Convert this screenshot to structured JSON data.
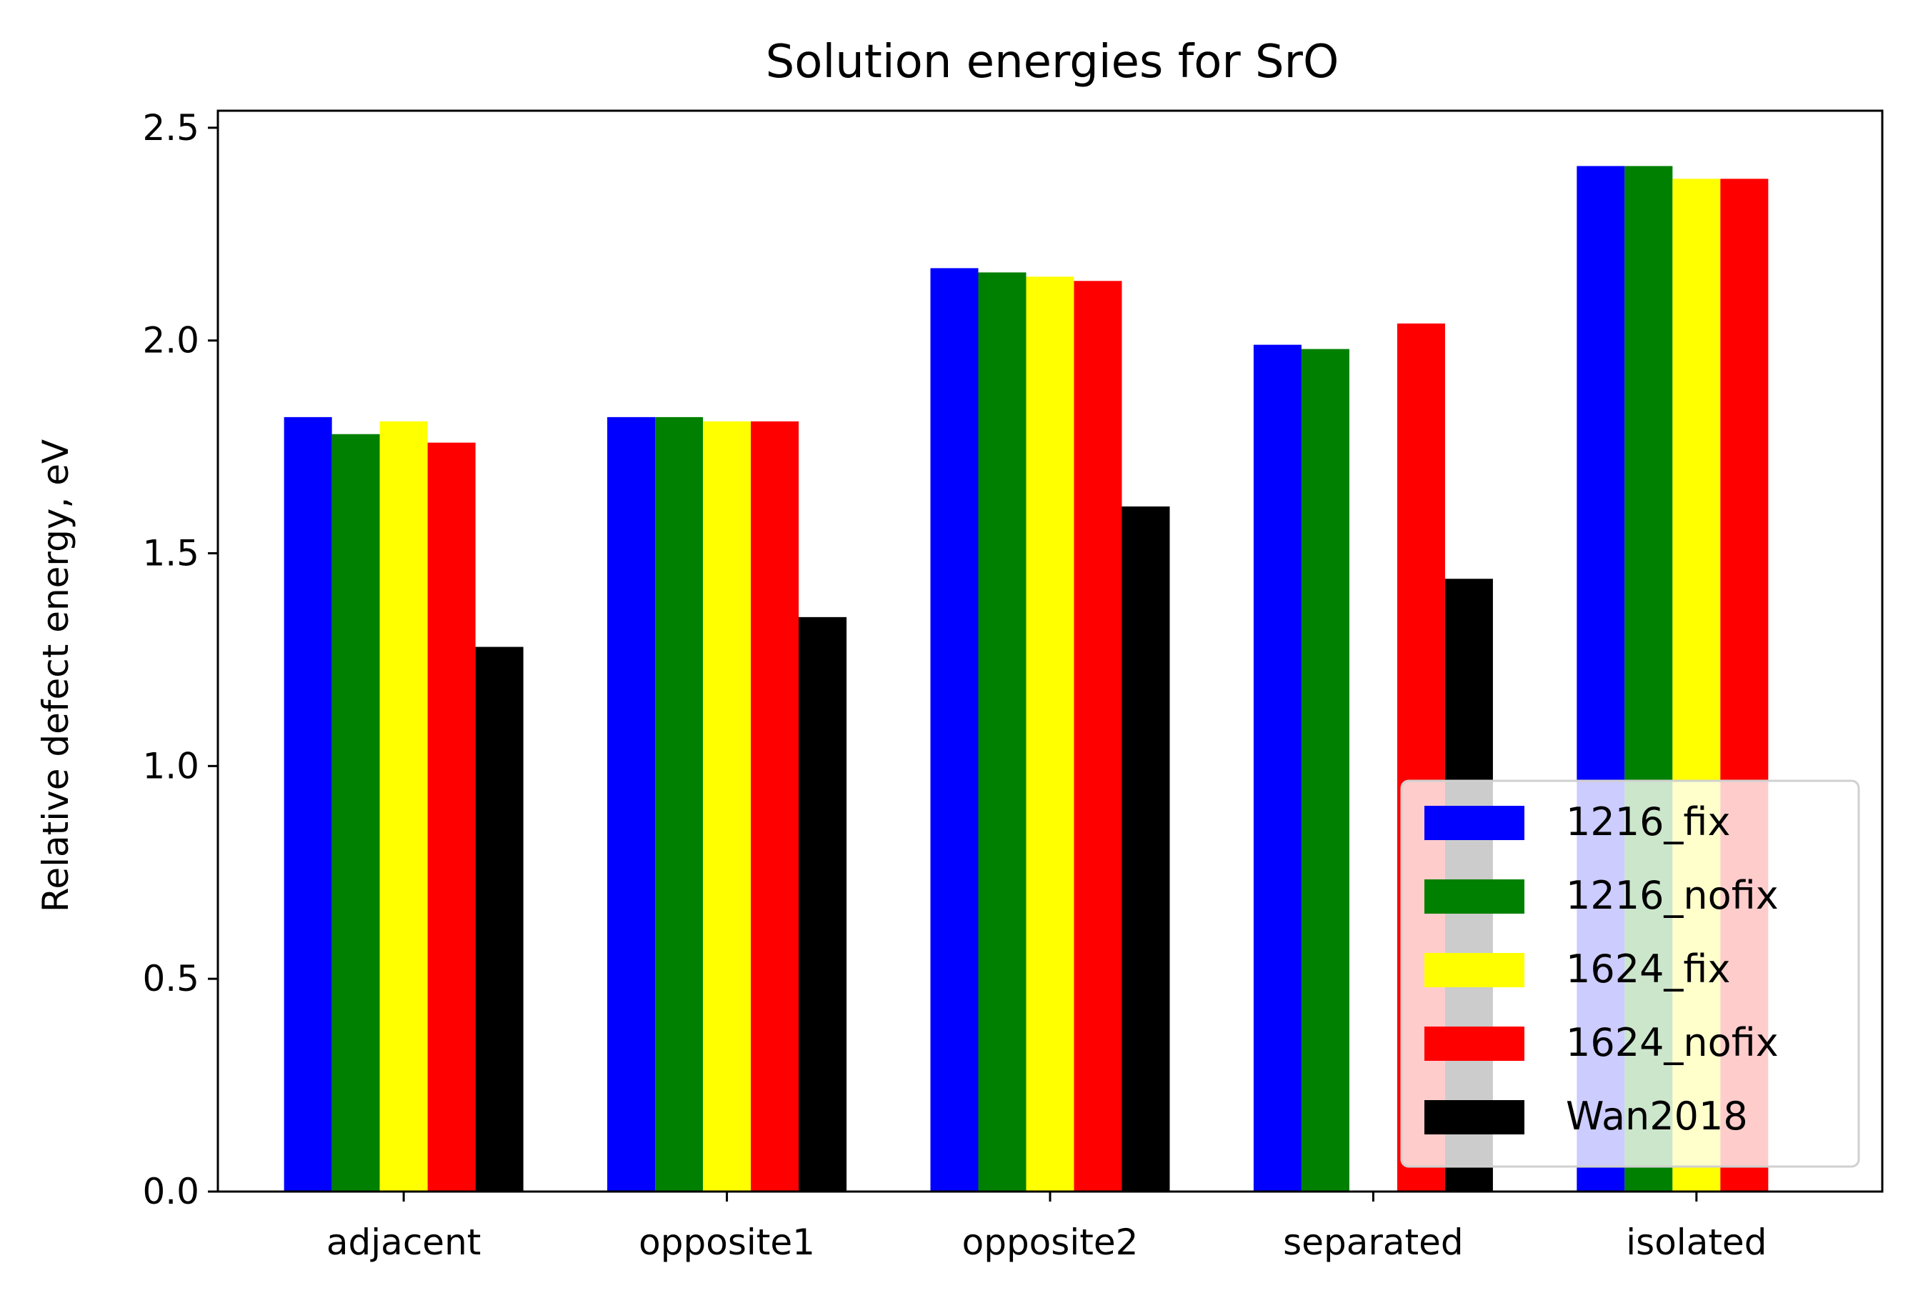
{
  "chart_data": {
    "type": "bar",
    "title": "Solution energies for SrO",
    "xlabel": "",
    "ylabel": "Relative defect energy, eV",
    "ylim": [
      0,
      2.54
    ],
    "yticks": [
      "0.0",
      "0.5",
      "1.0",
      "1.5",
      "2.0",
      "2.5"
    ],
    "categories": [
      "adjacent",
      "opposite1",
      "opposite2",
      "separated",
      "isolated"
    ],
    "series": [
      {
        "name": "1216_fix",
        "color": "#0000ff",
        "values": [
          1.82,
          1.82,
          2.17,
          1.99,
          2.41
        ]
      },
      {
        "name": "1216_nofix",
        "color": "#008000",
        "values": [
          1.78,
          1.82,
          2.16,
          1.98,
          2.41
        ]
      },
      {
        "name": "1624_fix",
        "color": "#ffff00",
        "values": [
          1.81,
          1.81,
          2.15,
          null,
          2.38
        ]
      },
      {
        "name": "1624_nofix",
        "color": "#ff0000",
        "values": [
          1.76,
          1.81,
          2.14,
          2.04,
          2.38
        ]
      },
      {
        "name": "Wan2018",
        "color": "#000000",
        "values": [
          1.28,
          1.35,
          1.61,
          1.44,
          null
        ]
      }
    ],
    "legend_position": "lower right",
    "grid": false
  }
}
